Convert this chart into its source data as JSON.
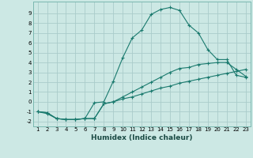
{
  "xlabel": "Humidex (Indice chaleur)",
  "ylabel": "",
  "x_values": [
    1,
    2,
    3,
    4,
    5,
    6,
    7,
    8,
    9,
    10,
    11,
    12,
    13,
    14,
    15,
    16,
    17,
    18,
    19,
    20,
    21,
    22,
    23
  ],
  "line1": [
    -1.0,
    -1.1,
    -1.7,
    -1.8,
    -1.8,
    -1.7,
    -1.7,
    -0.2,
    0.0,
    0.3,
    0.5,
    0.8,
    1.1,
    1.4,
    1.6,
    1.9,
    2.1,
    2.3,
    2.5,
    2.7,
    2.9,
    3.1,
    3.3
  ],
  "line2": [
    -1.0,
    -1.1,
    -1.7,
    -1.8,
    -1.8,
    -1.7,
    -0.1,
    0.0,
    2.1,
    4.5,
    6.5,
    7.3,
    8.9,
    9.4,
    9.6,
    9.3,
    7.8,
    7.0,
    5.3,
    4.3,
    4.3,
    2.7,
    2.5
  ],
  "line3": [
    -1.0,
    -1.2,
    -1.7,
    -1.8,
    -1.8,
    -1.7,
    -1.7,
    -0.2,
    0.0,
    0.5,
    1.0,
    1.5,
    2.0,
    2.5,
    3.0,
    3.4,
    3.5,
    3.8,
    3.9,
    4.0,
    4.0,
    3.3,
    2.6
  ],
  "ylim": [
    -2.5,
    10.2
  ],
  "xlim": [
    0.5,
    23.5
  ],
  "yticks": [
    -2,
    -1,
    0,
    1,
    2,
    3,
    4,
    5,
    6,
    7,
    8,
    9
  ],
  "xticks": [
    1,
    2,
    3,
    4,
    5,
    6,
    7,
    8,
    9,
    10,
    11,
    12,
    13,
    14,
    15,
    16,
    17,
    18,
    19,
    20,
    21,
    22,
    23
  ],
  "line_color": "#1a7a6e",
  "bg_color": "#cce8e4",
  "grid_color": "#aaccca",
  "tick_fontsize": 5.0,
  "xlabel_fontsize": 6.5,
  "lw": 0.8,
  "marker_size": 3
}
